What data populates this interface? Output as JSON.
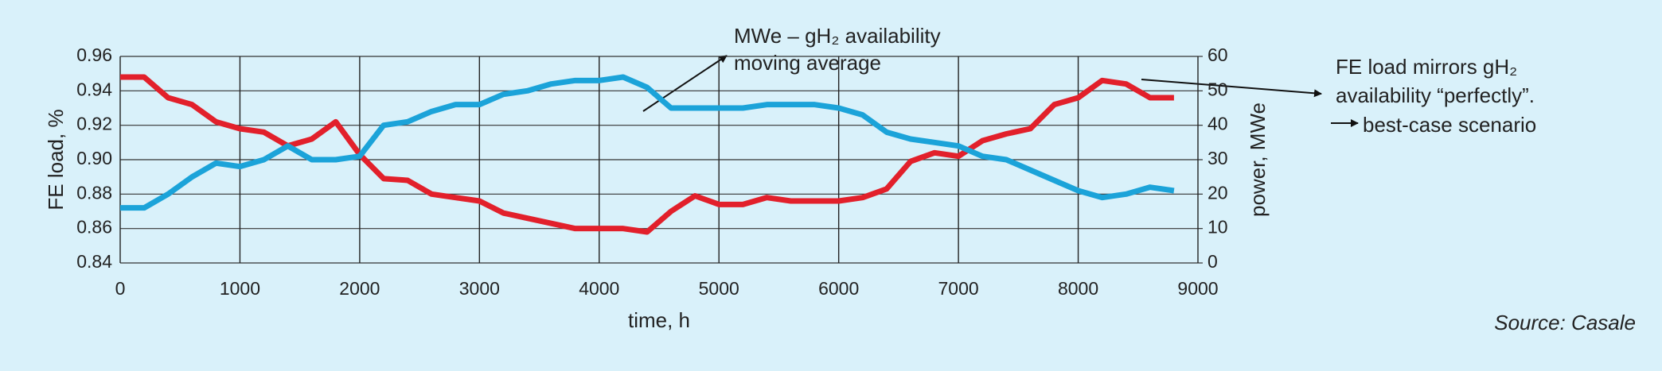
{
  "chart_data": {
    "type": "line",
    "x_label": "time, h",
    "y_label": "FE load, %",
    "y2_label": "power, MWe",
    "x": [
      0,
      200,
      400,
      600,
      800,
      1000,
      1200,
      1400,
      1600,
      1800,
      2000,
      2200,
      2400,
      2600,
      2800,
      3000,
      3200,
      3400,
      3600,
      3800,
      4000,
      4200,
      4400,
      4600,
      4800,
      5000,
      5200,
      5400,
      5600,
      5800,
      6000,
      6200,
      6400,
      6600,
      6800,
      7000,
      7200,
      7400,
      7600,
      7800,
      8000,
      8200,
      8400,
      8600,
      8800
    ],
    "series": [
      {
        "name": "FE load",
        "color": "#e2202b",
        "axis": "y",
        "values": [
          0.948,
          0.948,
          0.936,
          0.932,
          0.922,
          0.918,
          0.916,
          0.908,
          0.912,
          0.922,
          0.903,
          0.889,
          0.888,
          0.88,
          0.878,
          0.876,
          0.869,
          0.866,
          0.863,
          0.86,
          0.86,
          0.86,
          0.858,
          0.87,
          0.879,
          0.874,
          0.874,
          0.878,
          0.876,
          0.876,
          0.876,
          0.878,
          0.883,
          0.899,
          0.904,
          0.902,
          0.911,
          0.915,
          0.918,
          0.932,
          0.936,
          0.946,
          0.944,
          0.936,
          0.936
        ]
      },
      {
        "name": "MWe",
        "color": "#1ba3d9",
        "axis": "y2",
        "values": [
          16,
          16,
          20,
          25,
          29,
          28,
          30,
          34,
          30,
          30,
          31,
          40,
          41,
          44,
          46,
          46,
          49,
          50,
          52,
          53,
          53,
          54,
          51,
          45,
          45,
          45,
          45,
          46,
          46,
          46,
          45,
          43,
          38,
          36,
          35,
          34,
          31,
          30,
          27,
          24,
          21,
          19,
          20,
          22,
          21
        ]
      }
    ],
    "xlim": [
      0,
      9000
    ],
    "xticks": [
      0,
      1000,
      2000,
      3000,
      4000,
      5000,
      6000,
      7000,
      8000,
      9000
    ],
    "ylim": [
      0.84,
      0.96
    ],
    "yticks": [
      0.84,
      0.86,
      0.88,
      {
        "value": 0.9,
        "label": "0.90"
      },
      0.92,
      0.94,
      0.96
    ],
    "y2lim": [
      0,
      60
    ],
    "y2ticks": [
      0,
      10,
      20,
      30,
      40,
      50,
      60
    ],
    "grid": true,
    "annotations": [
      {
        "lines": [
          "MWe – gH₂ availability",
          "moving average"
        ]
      },
      {
        "lines": [
          "FE load mirrors gH₂",
          "availability “perfectly”.",
          "best-case scenario"
        ]
      }
    ],
    "source": "Source: Casale"
  }
}
